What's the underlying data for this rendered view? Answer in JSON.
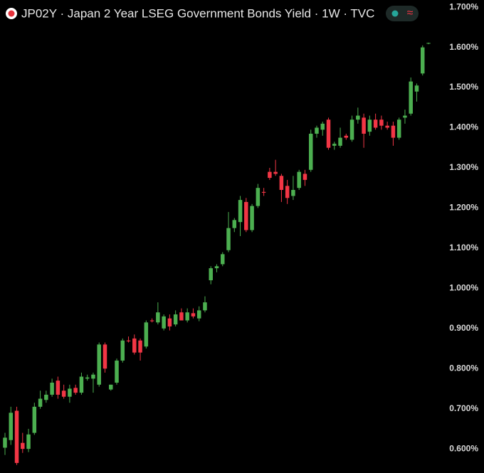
{
  "chart_data": {
    "type": "candlestick",
    "title": "JP02Y · Japan 2 Year LSEG Government Bonds Yield · 1W · TVC",
    "up_color": "#4caf50",
    "down_color": "#f23645",
    "open": [
      0.603,
      0.622,
      0.695,
      0.615,
      0.6,
      0.64,
      0.705,
      0.722,
      0.735,
      0.77,
      0.745,
      0.73,
      0.752,
      0.74,
      0.775,
      0.775,
      0.76,
      0.86,
      0.748,
      0.765,
      0.82,
      0.87,
      0.875,
      0.87,
      0.855,
      0.92,
      0.915,
      0.9,
      0.925,
      0.91,
      0.94,
      0.92,
      0.938,
      0.925,
      0.945,
      1.02,
      1.05,
      1.06,
      1.095,
      1.15,
      1.165,
      1.215,
      1.145,
      1.205,
      1.24,
      1.29,
      1.29,
      1.28,
      1.255,
      1.23,
      1.25,
      1.285,
      1.295,
      1.385,
      1.395,
      1.42,
      1.355,
      1.355,
      1.38,
      1.37,
      1.42,
      1.425,
      1.39,
      1.42,
      1.42,
      1.405,
      1.405,
      1.375,
      1.425,
      1.435,
      1.49,
      1.535,
      1.61
    ],
    "high": [
      0.64,
      0.705,
      0.705,
      0.64,
      0.65,
      0.715,
      0.745,
      0.745,
      0.775,
      0.78,
      0.76,
      0.76,
      0.76,
      0.79,
      0.785,
      0.79,
      0.865,
      0.865,
      0.76,
      0.825,
      0.875,
      0.88,
      0.885,
      0.875,
      0.92,
      0.925,
      0.965,
      0.935,
      0.935,
      0.945,
      0.95,
      0.95,
      0.95,
      0.955,
      0.98,
      1.055,
      1.06,
      1.09,
      1.19,
      1.175,
      1.23,
      1.225,
      1.21,
      1.26,
      1.25,
      1.3,
      1.32,
      1.285,
      1.27,
      1.28,
      1.295,
      1.295,
      1.395,
      1.405,
      1.415,
      1.425,
      1.365,
      1.4,
      1.385,
      1.43,
      1.45,
      1.435,
      1.43,
      1.435,
      1.43,
      1.415,
      1.415,
      1.425,
      1.445,
      1.525,
      1.51,
      1.605,
      1.612
    ],
    "low": [
      0.585,
      0.61,
      0.56,
      0.59,
      0.592,
      0.635,
      0.7,
      0.715,
      0.73,
      0.725,
      0.725,
      0.715,
      0.735,
      0.735,
      0.77,
      0.74,
      0.755,
      0.79,
      0.745,
      0.76,
      0.815,
      0.865,
      0.835,
      0.82,
      0.85,
      0.915,
      0.91,
      0.895,
      0.895,
      0.905,
      0.92,
      0.915,
      0.925,
      0.918,
      0.94,
      1.01,
      1.04,
      1.055,
      1.09,
      1.14,
      1.13,
      1.14,
      1.14,
      1.2,
      1.23,
      1.27,
      1.28,
      1.215,
      1.21,
      1.22,
      1.245,
      1.255,
      1.29,
      1.375,
      1.38,
      1.345,
      1.345,
      1.35,
      1.37,
      1.365,
      1.41,
      1.35,
      1.38,
      1.395,
      1.395,
      1.395,
      1.355,
      1.37,
      1.41,
      1.43,
      1.465,
      1.53,
      1.608
    ],
    "close": [
      0.628,
      0.69,
      0.565,
      0.6,
      0.636,
      0.705,
      0.725,
      0.735,
      0.765,
      0.735,
      0.73,
      0.75,
      0.74,
      0.78,
      0.778,
      0.785,
      0.86,
      0.8,
      0.76,
      0.82,
      0.87,
      0.868,
      0.84,
      0.84,
      0.915,
      0.918,
      0.94,
      0.93,
      0.905,
      0.935,
      0.92,
      0.94,
      0.93,
      0.945,
      0.965,
      1.05,
      1.055,
      1.085,
      1.15,
      1.17,
      1.22,
      1.145,
      1.205,
      1.25,
      1.238,
      1.275,
      1.285,
      1.245,
      1.225,
      1.245,
      1.29,
      1.27,
      1.385,
      1.4,
      1.41,
      1.35,
      1.36,
      1.375,
      1.375,
      1.42,
      1.43,
      1.385,
      1.42,
      1.4,
      1.405,
      1.4,
      1.375,
      1.42,
      1.43,
      1.515,
      1.505,
      1.6,
      1.611
    ],
    "ylim": [
      0.54,
      1.718
    ],
    "yticks": [
      {
        "value": 1.7,
        "label": "1.700%"
      },
      {
        "value": 1.6,
        "label": "1.600%"
      },
      {
        "value": 1.5,
        "label": "1.500%"
      },
      {
        "value": 1.4,
        "label": "1.400%"
      },
      {
        "value": 1.3,
        "label": "1.300%"
      },
      {
        "value": 1.2,
        "label": "1.200%"
      },
      {
        "value": 1.1,
        "label": "1.100%"
      },
      {
        "value": 1.0,
        "label": "1.000%"
      },
      {
        "value": 0.9,
        "label": "0.900%"
      },
      {
        "value": 0.8,
        "label": "0.800%"
      },
      {
        "value": 0.7,
        "label": "0.700%"
      },
      {
        "value": 0.6,
        "label": "0.600%"
      }
    ]
  }
}
